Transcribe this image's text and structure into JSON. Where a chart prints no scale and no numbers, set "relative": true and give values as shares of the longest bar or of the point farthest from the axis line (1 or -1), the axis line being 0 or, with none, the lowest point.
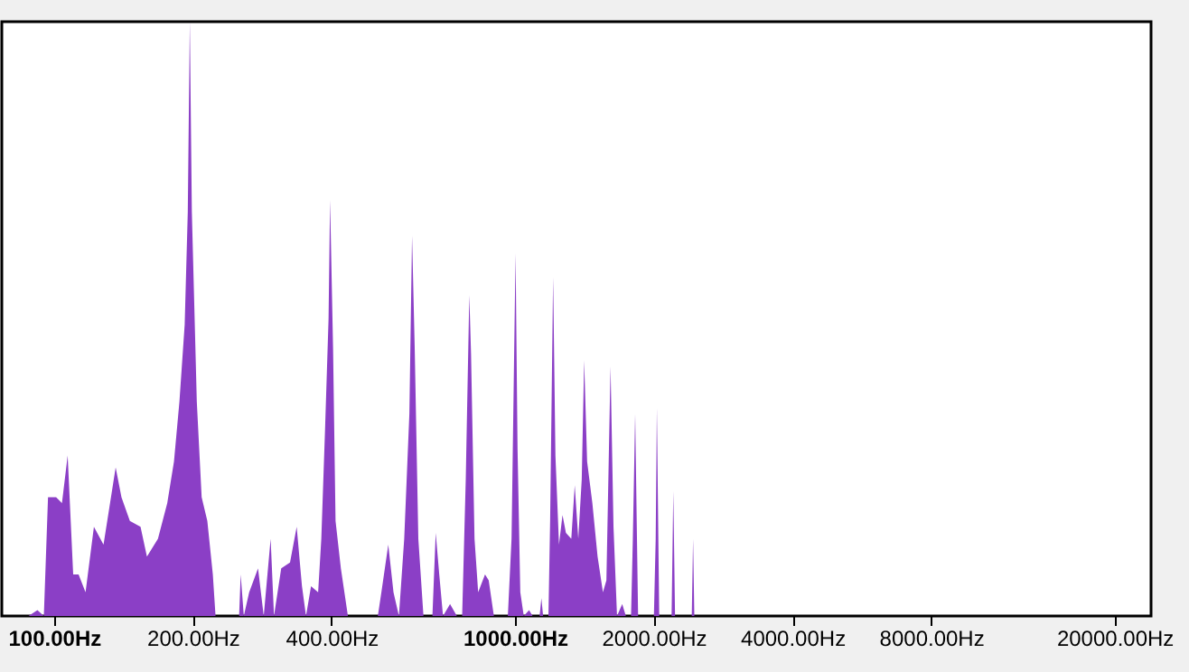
{
  "chart_data": {
    "type": "area",
    "relative": true,
    "log": "x",
    "grid": false,
    "color": "#8b3fc6",
    "xlim": [
      77,
      24000
    ],
    "xticks": [
      {
        "value": 100,
        "label": "100.00Hz"
      },
      {
        "value": 200,
        "label": "200.00Hz"
      },
      {
        "value": 400,
        "label": "400.00Hz"
      },
      {
        "value": 1000,
        "label": "1000.00Hz"
      },
      {
        "value": 2000,
        "label": "2000.00Hz"
      },
      {
        "value": 4000,
        "label": "4000.00Hz"
      },
      {
        "value": 8000,
        "label": "8000.00Hz"
      },
      {
        "value": 20000,
        "label": "20000.00Hz"
      }
    ],
    "x": [
      88,
      92,
      95,
      97,
      101,
      104,
      107,
      110,
      113,
      117,
      122,
      128,
      136,
      140,
      146,
      154,
      159,
      168,
      176,
      182,
      187,
      192,
      195,
      197,
      199,
      204,
      209,
      215,
      221,
      224,
      252,
      254,
      258,
      265,
      277,
      285,
      295,
      300,
      311,
      325,
      336,
      345,
      352,
      361,
      374,
      380,
      387,
      394,
      397,
      403,
      408,
      419,
      434,
      504,
      513,
      531,
      545,
      560,
      575,
      590,
      598,
      606,
      617,
      633,
      662,
      673,
      685,
      698,
      723,
      748,
      768,
      782,
      796,
      803,
      817,
      832,
      861,
      877,
      900,
      965,
      983,
      1003,
      1013,
      1027,
      1045,
      1073,
      1092,
      1131,
      1141,
      1151,
      1182,
      1192,
      1210,
      1224,
      1246,
      1268,
      1290,
      1325,
      1348,
      1372,
      1396,
      1413,
      1434,
      1472,
      1511,
      1552,
      1579,
      1612,
      1636,
      1665,
      1709,
      1740,
      1786,
      1802,
      1823,
      1850,
      2002,
      2020,
      2032,
      2056,
      2187,
      2206,
      2225,
      2419,
      2435,
      2450
    ],
    "values": [
      0,
      0.01,
      0,
      0.2,
      0.2,
      0.19,
      0.27,
      0.07,
      0.07,
      0.04,
      0.15,
      0.12,
      0.25,
      0.2,
      0.16,
      0.15,
      0.1,
      0.13,
      0.19,
      0.26,
      0.36,
      0.49,
      0.68,
      1,
      0.68,
      0.36,
      0.2,
      0.16,
      0.07,
      0,
      0,
      0.07,
      0,
      0.04,
      0.08,
      0,
      0.13,
      0,
      0.08,
      0.09,
      0.15,
      0.05,
      0,
      0.05,
      0.04,
      0.13,
      0.31,
      0.5,
      0.7,
      0.45,
      0.16,
      0.08,
      0,
      0,
      0.04,
      0.12,
      0.04,
      0,
      0.13,
      0.34,
      0.64,
      0.45,
      0.13,
      0,
      0,
      0.14,
      0.07,
      0,
      0.02,
      0,
      0,
      0.23,
      0.54,
      0.44,
      0.13,
      0.04,
      0.07,
      0.06,
      0,
      0,
      0.13,
      0.61,
      0.28,
      0.04,
      0,
      0.01,
      0,
      0,
      0.03,
      0,
      0,
      0.16,
      0.57,
      0.27,
      0.12,
      0.17,
      0.14,
      0.13,
      0.22,
      0.13,
      0.23,
      0.43,
      0.26,
      0.19,
      0.1,
      0.04,
      0.06,
      0.42,
      0.15,
      0,
      0.02,
      0,
      0,
      0.13,
      0.34,
      0,
      0,
      0.13,
      0.35,
      0,
      0,
      0.21,
      0,
      0,
      0.13,
      0
    ]
  }
}
